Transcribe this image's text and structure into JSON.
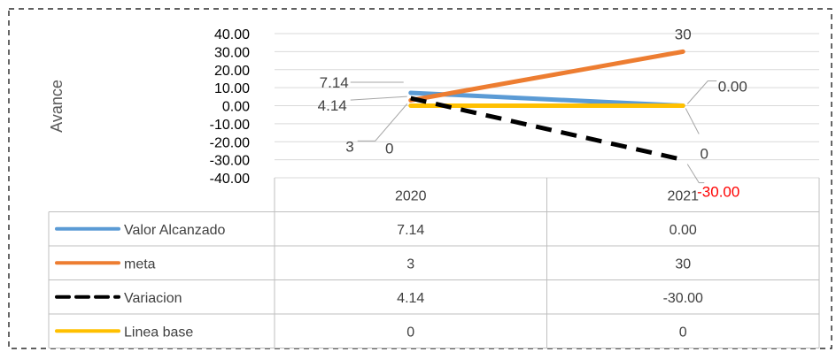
{
  "chart_data": {
    "type": "line",
    "title": "",
    "xlabel": "",
    "ylabel": "Avance",
    "ylim": [
      -40,
      40
    ],
    "yticks": [
      40,
      30,
      20,
      10,
      0,
      -10,
      -20,
      -30,
      -40
    ],
    "ytick_labels": [
      "40.00",
      "30.00",
      "20.00",
      "10.00",
      "0.00",
      "-10.00",
      "-20.00",
      "-30.00",
      "-40.00"
    ],
    "categories": [
      "2020",
      "2021"
    ],
    "grid": true,
    "legend": "data-table",
    "series": [
      {
        "name": "Valor Alcanzado",
        "values": [
          7.14,
          0.0
        ],
        "labels": [
          "7.14",
          "0.00"
        ],
        "table": [
          "7.14",
          "0.00"
        ],
        "color": "#5b9bd5",
        "style": "solid"
      },
      {
        "name": "meta",
        "values": [
          3,
          30
        ],
        "labels": [
          "3",
          "30"
        ],
        "table": [
          "3",
          "30"
        ],
        "color": "#ed7d31",
        "style": "solid"
      },
      {
        "name": "Variacion",
        "values": [
          4.14,
          -30.0
        ],
        "labels": [
          "4.14",
          "-30.00"
        ],
        "table": [
          "4.14",
          "-30.00"
        ],
        "color": "#000000",
        "style": "dashed"
      },
      {
        "name": "Linea base",
        "values": [
          0,
          0
        ],
        "labels": [
          "0",
          "0"
        ],
        "table": [
          "0",
          "0"
        ],
        "color": "#ffc000",
        "style": "solid"
      }
    ],
    "negative_label_color": "#ff0000"
  }
}
